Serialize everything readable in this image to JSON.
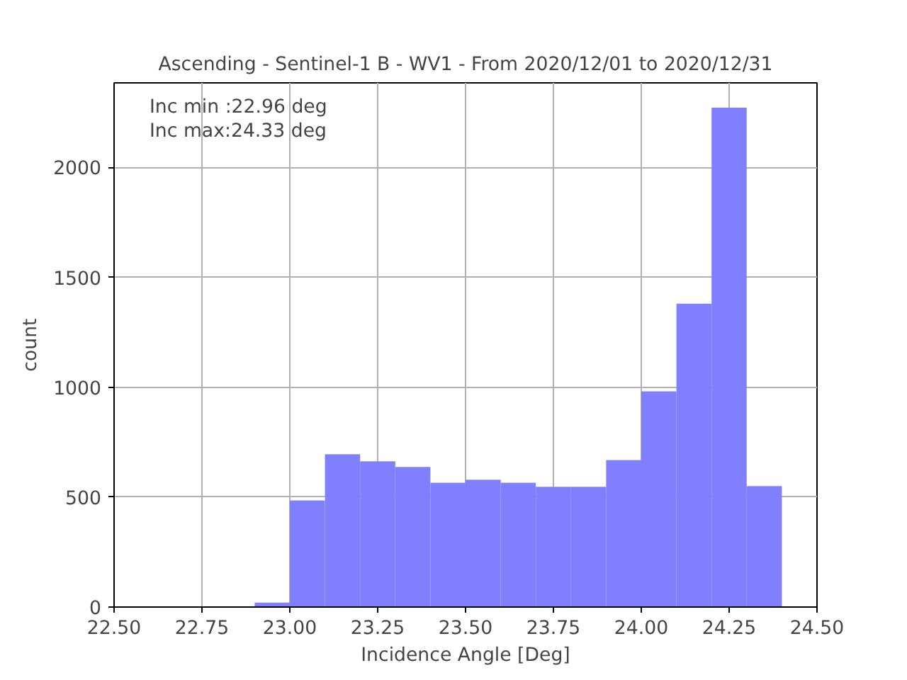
{
  "chart_data": {
    "type": "histogram",
    "title": "Ascending - Sentinel-1 B - WV1 - From 2020/12/01 to 2020/12/31",
    "xlabel": "Incidence Angle [Deg]",
    "ylabel": "count",
    "annotations": [
      "Inc min :22.96 deg",
      "Inc max:24.33 deg"
    ],
    "bins": [
      22.9,
      23.0,
      23.1,
      23.2,
      23.3,
      23.4,
      23.5,
      23.6,
      23.7,
      23.8,
      23.9,
      24.0,
      24.1,
      24.2,
      24.3,
      24.4
    ],
    "values": [
      20,
      485,
      695,
      663,
      637,
      566,
      579,
      566,
      547,
      547,
      669,
      981,
      1380,
      2272,
      550
    ],
    "color": "#8080ff",
    "xlim": [
      22.5,
      24.5
    ],
    "xticks": [
      {
        "value": 22.5,
        "label": "22.50"
      },
      {
        "value": 22.75,
        "label": "22.75"
      },
      {
        "value": 23.0,
        "label": "23.00"
      },
      {
        "value": 23.25,
        "label": "23.25"
      },
      {
        "value": 23.5,
        "label": "23.50"
      },
      {
        "value": 23.75,
        "label": "23.75"
      },
      {
        "value": 24.0,
        "label": "24.00"
      },
      {
        "value": 24.25,
        "label": "24.25"
      },
      {
        "value": 24.5,
        "label": "24.50"
      }
    ],
    "ylim": [
      0,
      2385
    ],
    "yticks": [
      0,
      500,
      1000,
      1500,
      2000
    ],
    "grid": true
  }
}
